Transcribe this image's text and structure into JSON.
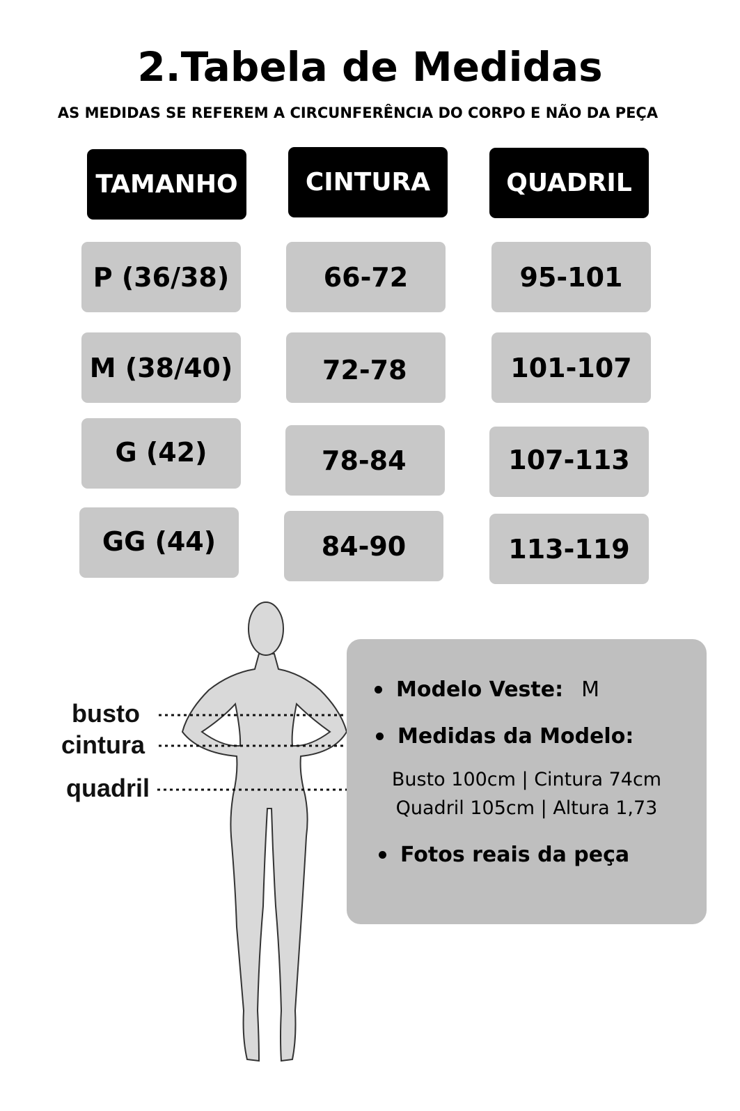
{
  "title": "2.Tabela de Medidas",
  "subtitle": "AS MEDIDAS SE REFEREM A CIRCUNFERÊNCIA DO CORPO E NÃO DA PEÇA",
  "table": {
    "headers": [
      "TAMANHO",
      "CINTURA",
      "QUADRIL"
    ],
    "rows": [
      [
        "P (36/38)",
        "66-72",
        "95-101"
      ],
      [
        "M (38/40)",
        "72-78",
        "101-107"
      ],
      [
        "G (42)",
        "78-84",
        "107-113"
      ],
      [
        "GG (44)",
        "84-90",
        "113-119"
      ]
    ]
  },
  "figure": {
    "labels": [
      "busto",
      "cintura",
      "quadril"
    ]
  },
  "info": {
    "model_wears_label": "Modelo Veste:",
    "model_wears_value": "M",
    "model_measures_label": "Medidas da Modelo:",
    "measures_line1": "Busto 100cm | Cintura 74cm",
    "measures_line2": "Quadril 105cm | Altura 1,73",
    "real_photos": "Fotos reais da peça"
  },
  "colors": {
    "header_bg": "#000000",
    "cell_bg": "#c8c8c8",
    "info_bg": "#bfbfbf"
  }
}
